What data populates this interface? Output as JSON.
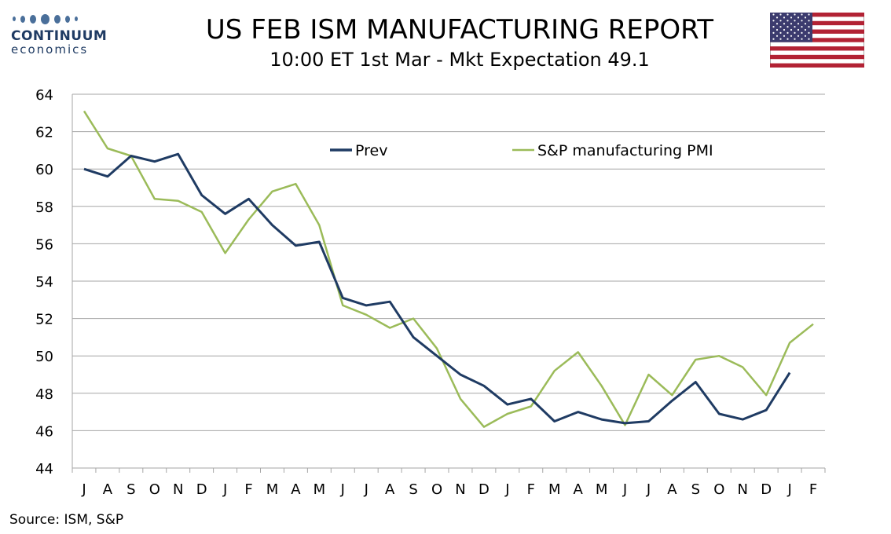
{
  "header": {
    "logo_name": "CONTINUUM",
    "logo_sub": "economics",
    "title": "US FEB ISM MANUFACTURING REPORT",
    "subtitle": "10:00 ET 1st Mar - Mkt Expectation 49.1"
  },
  "source": "Source: ISM, S&P",
  "colors": {
    "prev": "#1f3b63",
    "sp": "#9bbb59",
    "grid": "#a6a6a6",
    "flag_red": "#b22234",
    "flag_blue": "#3c3b6e"
  },
  "chart_data": {
    "type": "line",
    "categories": [
      "J",
      "A",
      "S",
      "O",
      "N",
      "D",
      "J",
      "F",
      "M",
      "A",
      "M",
      "J",
      "J",
      "A",
      "S",
      "O",
      "N",
      "D",
      "J",
      "F",
      "M",
      "A",
      "M",
      "J",
      "J",
      "A",
      "S",
      "O",
      "N",
      "D",
      "J",
      "F"
    ],
    "ylim": [
      44,
      64
    ],
    "yticks": [
      44,
      46,
      48,
      50,
      52,
      54,
      56,
      58,
      60,
      62,
      64
    ],
    "grid": true,
    "legend_position": "top",
    "series": [
      {
        "name": "Prev",
        "color": "#1f3b63",
        "values": [
          60.0,
          59.6,
          60.7,
          60.4,
          60.8,
          58.6,
          57.6,
          58.4,
          57.0,
          55.9,
          56.1,
          53.1,
          52.7,
          52.9,
          51.0,
          50.0,
          49.0,
          48.4,
          47.4,
          47.7,
          46.5,
          47.0,
          46.6,
          46.4,
          46.5,
          47.6,
          48.6,
          46.9,
          46.6,
          47.1,
          49.1,
          null
        ]
      },
      {
        "name": "S&P manufacturing PMI",
        "color": "#9bbb59",
        "values": [
          63.1,
          61.1,
          60.7,
          58.4,
          58.3,
          57.7,
          55.5,
          57.3,
          58.8,
          59.2,
          57.0,
          52.7,
          52.2,
          51.5,
          52.0,
          50.4,
          47.7,
          46.2,
          46.9,
          47.3,
          49.2,
          50.2,
          48.4,
          46.3,
          49.0,
          47.9,
          49.8,
          50.0,
          49.4,
          47.9,
          50.7,
          51.7
        ]
      }
    ]
  }
}
